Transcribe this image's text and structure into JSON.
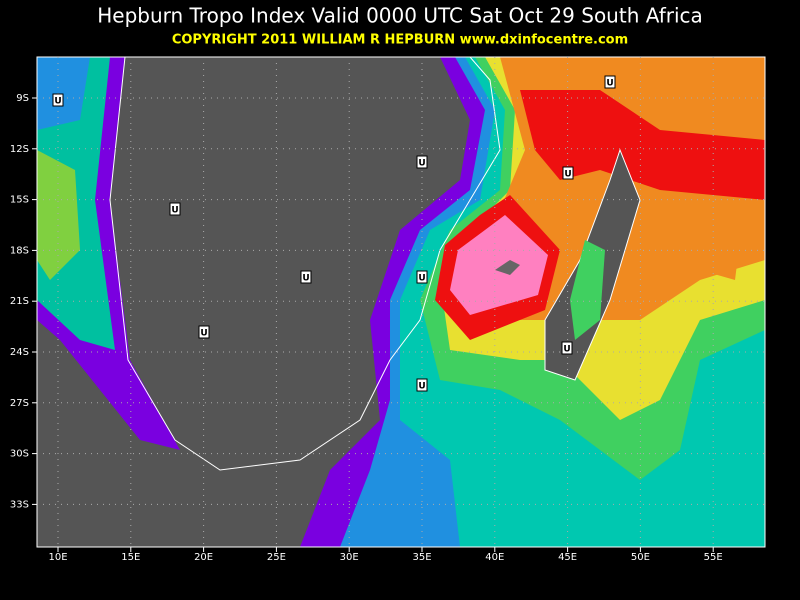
{
  "header": {
    "title": "Hepburn Tropo Index Valid 0000 UTC Sat Oct 29 South Africa",
    "subtitle": "COPYRIGHT 2011   WILLIAM R HEPBURN   www.dxinfocentre.com"
  },
  "map": {
    "lat_labels": [
      "9S",
      "12S",
      "15S",
      "18S",
      "21S",
      "24S",
      "27S",
      "30S",
      "33S"
    ],
    "lon_labels": [
      "10E",
      "15E",
      "20E",
      "25E",
      "30E",
      "35E",
      "40E",
      "45E",
      "50E",
      "55E"
    ],
    "markers": [
      "U",
      "U",
      "U",
      "U",
      "U",
      "U",
      "U",
      "U",
      "U",
      "U"
    ]
  }
}
